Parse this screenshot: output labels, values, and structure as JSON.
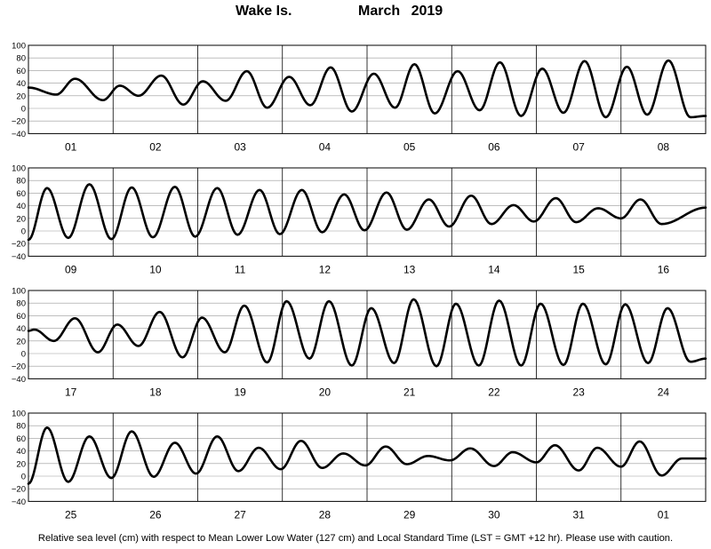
{
  "chart_data": {
    "type": "line",
    "station": "Wake Is.",
    "period": "March   2019",
    "footer": "Relative sea level (cm) with respect to Mean Lower Low Water (127 cm) and Local Standard Time (LST = GMT +12 hr). Please use with caution.",
    "ylim": [
      -40,
      100
    ],
    "yticks": [
      "100",
      "80",
      "60",
      "40",
      "20",
      "0",
      "−20",
      "−40"
    ],
    "grid": true,
    "series_color": "#000000",
    "panels": [
      {
        "days": [
          "01",
          "02",
          "03",
          "04",
          "05",
          "06",
          "07",
          "08"
        ],
        "extrema_x_days": [
          0,
          0.33,
          0.55,
          0.88,
          1.08,
          1.3,
          1.57,
          1.83,
          2.06,
          2.33,
          2.58,
          2.82,
          3.08,
          3.33,
          3.57,
          3.82,
          4.08,
          4.33,
          4.56,
          4.8,
          5.07,
          5.33,
          5.57,
          5.82,
          6.07,
          6.32,
          6.57,
          6.82,
          7.07,
          7.31,
          7.56,
          7.82,
          8.0
        ],
        "extrema_y_cm": [
          33,
          22,
          47,
          13,
          36,
          20,
          52,
          6,
          43,
          12,
          59,
          1,
          50,
          5,
          65,
          -5,
          55,
          1,
          70,
          -8,
          59,
          -3,
          73,
          -12,
          63,
          -7,
          75,
          -14,
          66,
          -10,
          76,
          -14,
          -12
        ]
      },
      {
        "days": [
          "09",
          "10",
          "11",
          "12",
          "13",
          "14",
          "15",
          "16"
        ],
        "extrema_x_days": [
          0,
          0.22,
          0.47,
          0.72,
          0.98,
          1.22,
          1.47,
          1.73,
          1.97,
          2.23,
          2.47,
          2.73,
          2.97,
          3.23,
          3.47,
          3.73,
          3.97,
          4.23,
          4.47,
          4.73,
          4.97,
          5.23,
          5.47,
          5.73,
          5.97,
          6.23,
          6.47,
          6.73,
          7.0,
          7.23,
          7.48,
          8.0
        ],
        "extrema_y_cm": [
          -14,
          68,
          -11,
          74,
          -13,
          69,
          -10,
          70,
          -9,
          68,
          -6,
          65,
          -5,
          65,
          -2,
          58,
          1,
          61,
          2,
          50,
          7,
          56,
          11,
          41,
          15,
          52,
          14,
          36,
          20,
          50,
          11,
          37
        ]
      },
      {
        "days": [
          "17",
          "18",
          "19",
          "20",
          "21",
          "22",
          "23",
          "24"
        ],
        "extrema_x_days": [
          0,
          0.07,
          0.3,
          0.55,
          0.82,
          1.05,
          1.3,
          1.55,
          1.82,
          2.05,
          2.32,
          2.55,
          2.82,
          3.05,
          3.32,
          3.55,
          3.82,
          4.05,
          4.32,
          4.55,
          4.82,
          5.05,
          5.32,
          5.56,
          5.82,
          6.05,
          6.32,
          6.55,
          6.82,
          7.05,
          7.32,
          7.55,
          7.82,
          8.0
        ],
        "extrema_y_cm": [
          36,
          38,
          20,
          56,
          2,
          46,
          12,
          66,
          -6,
          57,
          2,
          76,
          -14,
          83,
          -8,
          83,
          -19,
          72,
          -15,
          86,
          -20,
          79,
          -19,
          84,
          -19,
          79,
          -18,
          79,
          -17,
          78,
          -15,
          72,
          -13,
          -8
        ]
      },
      {
        "days": [
          "25",
          "26",
          "27",
          "28",
          "29",
          "30",
          "31",
          "01"
        ],
        "extrema_x_days": [
          0,
          0.22,
          0.47,
          0.72,
          0.98,
          1.22,
          1.48,
          1.73,
          1.98,
          2.23,
          2.48,
          2.72,
          2.98,
          3.22,
          3.47,
          3.72,
          3.98,
          4.22,
          4.47,
          4.72,
          4.98,
          5.22,
          5.5,
          5.72,
          6.0,
          6.22,
          6.5,
          6.72,
          7.0,
          7.22,
          7.48,
          7.72,
          8.0
        ],
        "extrema_y_cm": [
          -12,
          77,
          -9,
          63,
          -3,
          71,
          -1,
          53,
          4,
          63,
          8,
          45,
          11,
          56,
          13,
          36,
          17,
          47,
          19,
          32,
          25,
          44,
          16,
          38,
          22,
          49,
          9,
          45,
          15,
          55,
          1,
          28,
          28
        ]
      }
    ]
  }
}
